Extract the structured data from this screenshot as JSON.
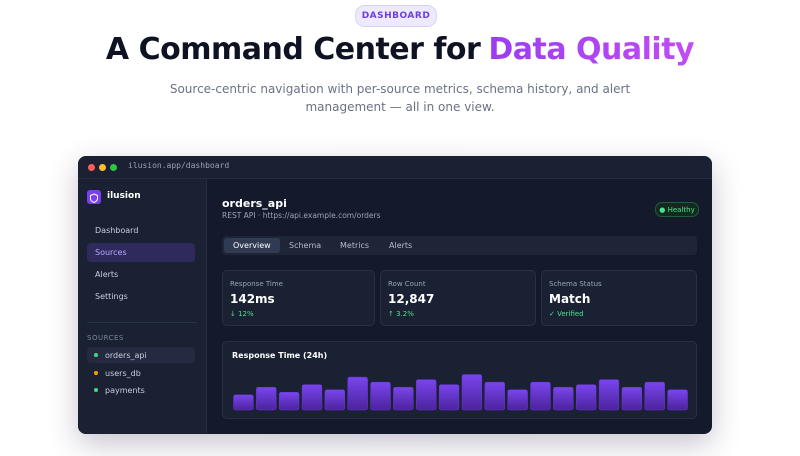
{
  "hero": {
    "badge": "DASHBOARD",
    "title": [
      "A Command Center for",
      "Data Quality"
    ],
    "subtitle": [
      "Source-centric navigation with per-source metrics, schema history, and alert",
      "management — all in one view."
    ]
  },
  "dashboard": {
    "url": "ilusion.app/dashboard",
    "brand": "ilusion",
    "nav": [
      "Dashboard",
      "Sources",
      "Alerts",
      "Settings"
    ],
    "sources_heading": "SOURCES",
    "sources": [
      "orders_api",
      "users_db",
      "payments"
    ],
    "source_title": "orders_api",
    "source_subtitle": "REST API · https://api.example.com/orders",
    "status": "● Healthy",
    "tabs": [
      "Overview",
      "Schema",
      "Metrics",
      "Alerts"
    ],
    "cards": [
      {
        "label": "Response Time",
        "value": "142ms",
        "delta": "↓ 12%"
      },
      {
        "label": "Row Count",
        "value": "12,847",
        "delta": "↑ 3.2%"
      },
      {
        "label": "Schema Status",
        "value": "Match",
        "delta": "✓ Verified"
      }
    ],
    "chart": {
      "type": "bar",
      "title": "Response Time (24h)",
      "color": "#6a35d8",
      "values": [
        12,
        18,
        14,
        20,
        16,
        26,
        22,
        18,
        24,
        20,
        28,
        22,
        16,
        22,
        18,
        20,
        24,
        18,
        22,
        16
      ],
      "ylim": [
        0,
        30
      ]
    }
  }
}
